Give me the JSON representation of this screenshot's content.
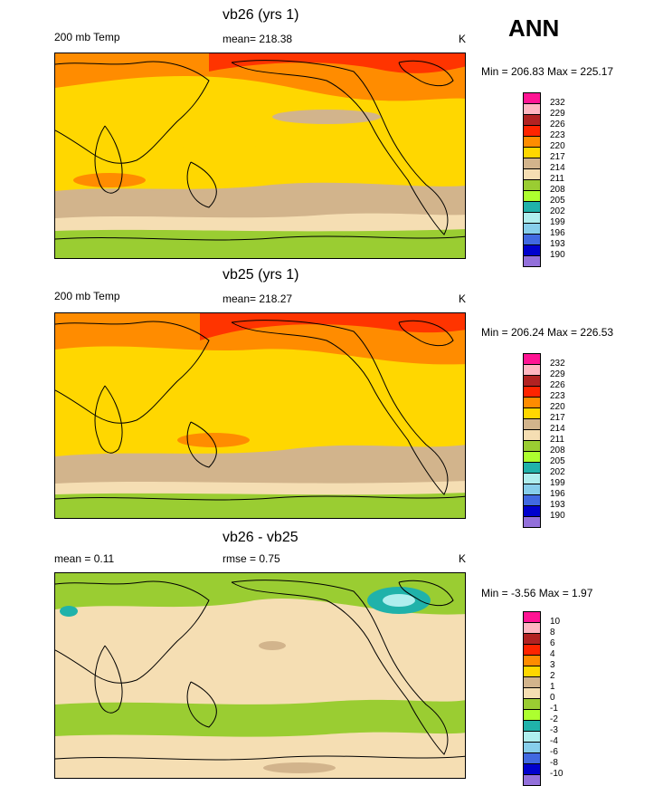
{
  "figure": {
    "season": "ANN"
  },
  "panels": [
    {
      "title": "vb26 (yrs 1)",
      "left": "200 mb Temp",
      "center": "mean= 218.38",
      "right": "K",
      "minmax": "Min = 206.83 Max = 225.17"
    },
    {
      "title": "vb25 (yrs 1)",
      "left": "200 mb Temp",
      "center": "mean= 218.27",
      "right": "K",
      "minmax": "Min = 206.24 Max = 226.53"
    },
    {
      "title": "vb26 - vb25",
      "left": "mean =   0.11",
      "center": "rmse =   0.75",
      "right": "K",
      "minmax": "Min =  -3.56 Max =   1.97"
    }
  ],
  "chart_data": [
    {
      "type": "heatmap",
      "title": "vb26 (yrs 1)",
      "variable": "200 mb Temp",
      "units": "K",
      "mean": 218.38,
      "min": 206.83,
      "max": 225.17,
      "colorbar": {
        "labels": [
          "232",
          "229",
          "226",
          "223",
          "220",
          "217",
          "214",
          "211",
          "208",
          "205",
          "202",
          "199",
          "196",
          "193",
          "190"
        ],
        "colors": [
          "#ff1493",
          "#ffb6c1",
          "#b22222",
          "#ff2400",
          "#ff8c00",
          "#ffd700",
          "#d2b48c",
          "#f5deb3",
          "#9acd32",
          "#adff2f",
          "#20b2aa",
          "#afeeee",
          "#87ceeb",
          "#4169e1",
          "#0000cd",
          "#9370db"
        ]
      },
      "bands": [
        {
          "lat_range": [
            60,
            90
          ],
          "value_k": 222,
          "color": "#ff8c00"
        },
        {
          "lat_range": [
            30,
            60
          ],
          "value_k": 219,
          "color": "#ffd700"
        },
        {
          "lat_range": [
            -20,
            30
          ],
          "value_k": 219,
          "color": "#ffd700"
        },
        {
          "lat_range": [
            -45,
            -20
          ],
          "value_k": 216,
          "color": "#d2b48c"
        },
        {
          "lat_range": [
            -60,
            -45
          ],
          "value_k": 213,
          "color": "#f5deb3"
        },
        {
          "lat_range": [
            -90,
            -60
          ],
          "value_k": 208,
          "color": "#9acd32"
        }
      ]
    },
    {
      "type": "heatmap",
      "title": "vb25 (yrs 1)",
      "variable": "200 mb Temp",
      "units": "K",
      "mean": 218.27,
      "min": 206.24,
      "max": 226.53,
      "colorbar": {
        "labels": [
          "232",
          "229",
          "226",
          "223",
          "220",
          "217",
          "214",
          "211",
          "208",
          "205",
          "202",
          "199",
          "196",
          "193",
          "190"
        ],
        "colors": [
          "#ff1493",
          "#ffb6c1",
          "#b22222",
          "#ff2400",
          "#ff8c00",
          "#ffd700",
          "#d2b48c",
          "#f5deb3",
          "#9acd32",
          "#adff2f",
          "#20b2aa",
          "#afeeee",
          "#87ceeb",
          "#4169e1",
          "#0000cd",
          "#9370db"
        ]
      },
      "bands": [
        {
          "lat_range": [
            55,
            90
          ],
          "value_k": 223,
          "color": "#ff8c00"
        },
        {
          "lat_range": [
            -35,
            55
          ],
          "value_k": 219,
          "color": "#ffd700"
        },
        {
          "lat_range": [
            -55,
            -35
          ],
          "value_k": 216,
          "color": "#d2b48c"
        },
        {
          "lat_range": [
            -65,
            -55
          ],
          "value_k": 213,
          "color": "#f5deb3"
        },
        {
          "lat_range": [
            -90,
            -65
          ],
          "value_k": 208,
          "color": "#9acd32"
        }
      ]
    },
    {
      "type": "heatmap",
      "title": "vb26 - vb25",
      "units": "K",
      "mean": 0.11,
      "rmse": 0.75,
      "min": -3.56,
      "max": 1.97,
      "colorbar": {
        "labels": [
          "10",
          "8",
          "6",
          "4",
          "3",
          "2",
          "1",
          "0",
          "-1",
          "-2",
          "-3",
          "-4",
          "-6",
          "-8",
          "-10"
        ],
        "colors": [
          "#ff1493",
          "#ffb6c1",
          "#b22222",
          "#ff2400",
          "#ff8c00",
          "#ffd700",
          "#d2b48c",
          "#f5deb3",
          "#9acd32",
          "#adff2f",
          "#20b2aa",
          "#afeeee",
          "#87ceeb",
          "#4169e1",
          "#0000cd",
          "#9370db"
        ]
      },
      "bands": [
        {
          "lat_range": [
            55,
            90
          ],
          "value_k": -0.5,
          "color": "#9acd32"
        },
        {
          "lat_range": [
            -40,
            55
          ],
          "value_k": 0.5,
          "color": "#f5deb3"
        },
        {
          "lat_range": [
            -55,
            -40
          ],
          "value_k": -0.5,
          "color": "#9acd32"
        },
        {
          "lat_range": [
            -90,
            -55
          ],
          "value_k": 0.5,
          "color": "#f5deb3"
        }
      ]
    }
  ]
}
